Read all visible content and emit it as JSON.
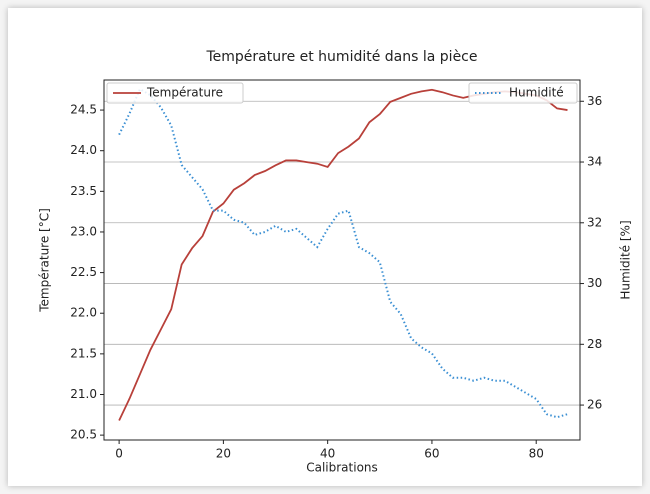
{
  "chart_data": {
    "type": "line",
    "title": "Température et humidité dans la pièce",
    "x_label": "Calibrations",
    "y_label": "Température [°C]",
    "y2_label": "Humidité [%]",
    "x": [
      0,
      2,
      4,
      6,
      8,
      10,
      12,
      14,
      16,
      18,
      20,
      22,
      24,
      26,
      28,
      30,
      32,
      34,
      36,
      38,
      40,
      42,
      44,
      46,
      48,
      50,
      52,
      54,
      56,
      58,
      60,
      62,
      64,
      66,
      68,
      70,
      72,
      74,
      76,
      78,
      80,
      82,
      84,
      86
    ],
    "series": [
      {
        "name": "Température",
        "color": "#b8403a",
        "linestyle": "solid",
        "axis": "y",
        "legend": "upper-left",
        "values": [
          20.68,
          20.95,
          21.25,
          21.55,
          21.8,
          22.05,
          22.6,
          22.8,
          22.95,
          23.25,
          23.35,
          23.52,
          23.6,
          23.7,
          23.75,
          23.82,
          23.88,
          23.88,
          23.86,
          23.84,
          23.8,
          23.97,
          24.05,
          24.15,
          24.35,
          24.45,
          24.6,
          24.65,
          24.7,
          24.73,
          24.75,
          24.72,
          24.68,
          24.65,
          24.68,
          24.7,
          24.72,
          24.73,
          24.72,
          24.7,
          24.68,
          24.62,
          24.52,
          24.5
        ]
      },
      {
        "name": "Humidité",
        "color": "#3a8fd3",
        "linestyle": "dotted",
        "axis": "y2",
        "legend": "upper-right",
        "values": [
          34.9,
          35.6,
          36.4,
          36.2,
          35.8,
          35.2,
          33.9,
          33.5,
          33.1,
          32.4,
          32.4,
          32.1,
          32.0,
          31.6,
          31.7,
          31.9,
          31.7,
          31.8,
          31.5,
          31.2,
          31.8,
          32.3,
          32.4,
          31.2,
          31.0,
          30.7,
          29.4,
          29.0,
          28.2,
          27.9,
          27.7,
          27.2,
          26.9,
          26.9,
          26.8,
          26.9,
          26.8,
          26.8,
          26.6,
          26.4,
          26.2,
          25.7,
          25.6,
          25.7
        ]
      }
    ],
    "xlim": [
      -2.9,
      88.4
    ],
    "xticks": [
      0,
      20,
      40,
      60,
      80
    ],
    "ylim": [
      20.44,
      24.87
    ],
    "yticks": [
      20.5,
      {
        "value": 21,
        "label": "21.0"
      },
      21.5,
      {
        "value": 22,
        "label": "22.0"
      },
      22.5,
      {
        "value": 23,
        "label": "23.0"
      },
      23.5,
      {
        "value": 24,
        "label": "24.0"
      },
      24.5
    ],
    "y2lim": [
      24.85,
      36.7
    ],
    "y2ticks": [
      26,
      28,
      30,
      32,
      34,
      36
    ],
    "grid": "y2"
  }
}
